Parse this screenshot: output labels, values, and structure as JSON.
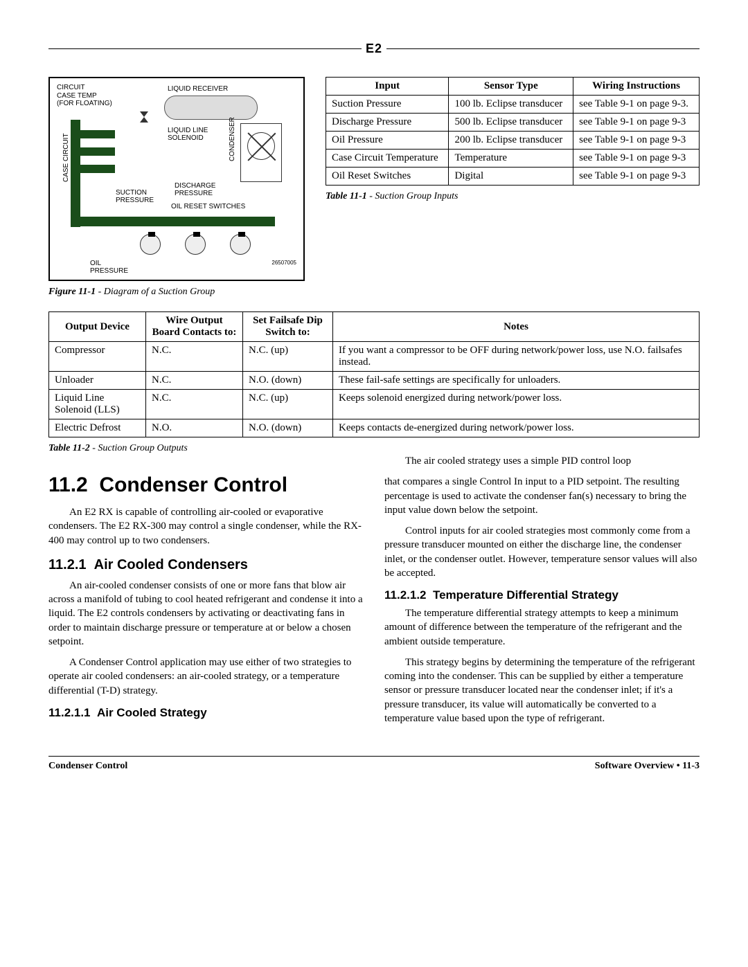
{
  "header": {
    "logo": "E2"
  },
  "figure": {
    "labels": {
      "circuit_case_temp": "CIRCUIT\nCASE TEMP\n(FOR FLOATING)",
      "liquid_receiver": "LIQUID RECEIVER",
      "liquid_line_solenoid": "LIQUID LINE\nSOLENOID",
      "condenser": "CONDENSER",
      "case_circuit": "CASE CIRCUIT",
      "suction_pressure": "SUCTION\nPRESSURE",
      "discharge_pressure": "DISCHARGE\nPRESSURE",
      "oil_reset_switches": "OIL RESET SWITCHES",
      "oil_pressure": "OIL\nPRESSURE",
      "part_no": "26507005"
    },
    "caption_label": "Figure 11-1",
    "caption_text": " - Diagram of a Suction Group"
  },
  "table1": {
    "headers": [
      "Input",
      "Sensor Type",
      "Wiring Instructions"
    ],
    "rows": [
      [
        "Suction Pressure",
        "100 lb. Eclipse transducer",
        "see Table 9-1 on page 9-3."
      ],
      [
        "Discharge Pressure",
        "500 lb. Eclipse transducer",
        "see Table 9-1 on page 9-3"
      ],
      [
        "Oil Pressure",
        "200 lb. Eclipse transducer",
        "see Table 9-1 on page 9-3"
      ],
      [
        "Case Circuit Temperature",
        "Temperature",
        "see Table 9-1 on page 9-3"
      ],
      [
        "Oil Reset Switches",
        "Digital",
        "see Table 9-1 on page 9-3"
      ]
    ],
    "caption_label": "Table 11-1",
    "caption_text": " - Suction Group Inputs"
  },
  "table2": {
    "headers": [
      "Output Device",
      "Wire Output Board Contacts to:",
      "Set Failsafe Dip Switch to:",
      "Notes"
    ],
    "rows": [
      [
        "Compressor",
        "N.C.",
        "N.C. (up)",
        "If you want a compressor to be OFF during network/power loss, use N.O. failsafes instead."
      ],
      [
        "Unloader",
        "N.C.",
        "N.O. (down)",
        "These fail-safe settings are specifically for unloaders."
      ],
      [
        "Liquid Line Solenoid (LLS)",
        "N.C.",
        "N.C. (up)",
        "Keeps solenoid energized during network/power loss."
      ],
      [
        "Electric Defrost",
        "N.O.",
        "N.O. (down)",
        "Keeps contacts de-energized during network/power loss."
      ]
    ],
    "caption_label": "Table 11-2",
    "caption_text": " - Suction Group Outputs"
  },
  "sections": {
    "h1_num": "11.2",
    "h1_title": "Condenser Control",
    "p1": "An E2 RX is capable of controlling air-cooled or evaporative condensers. The E2 RX-300 may control a single condenser, while the RX-400 may control up to two condensers.",
    "h2_1_num": "11.2.1",
    "h2_1_title": "Air Cooled Condensers",
    "p2": "An air-cooled condenser consists of one or more fans that blow air across a manifold of tubing to cool heated refrigerant and condense it into a liquid. The E2 controls condensers by activating or deactivating fans in order to maintain discharge pressure or temperature at or below a chosen setpoint.",
    "p3": "A Condenser Control application may use either of two strategies to operate air cooled condensers: an air-cooled strategy, or a temperature differential (T-D) strategy.",
    "h3_1_num": "11.2.1.1",
    "h3_1_title": "Air Cooled Strategy",
    "p4": "The air cooled strategy uses a simple PID control loop",
    "p5": "that compares a single Control In input to a PID setpoint. The resulting percentage is used to activate the condenser fan(s) necessary to bring the input value down below the setpoint.",
    "p6": "Control inputs for air cooled strategies most commonly come from a pressure transducer mounted on either the discharge line, the condenser inlet, or the condenser outlet. However, temperature sensor values will also be accepted.",
    "h3_2_num": "11.2.1.2",
    "h3_2_title": "Temperature Differential Strategy",
    "p7": "The temperature differential strategy attempts to keep a minimum amount of difference between the temperature of the refrigerant and the ambient outside temperature.",
    "p8": "This strategy begins by determining the temperature of the refrigerant coming into the condenser. This can be supplied by either a temperature sensor or pressure transducer located near the condenser inlet; if it's a pressure transducer, its value will automatically be converted to a temperature value based upon the type of refrigerant."
  },
  "footer": {
    "left": "Condenser Control",
    "right": "Software Overview • 11-3"
  }
}
